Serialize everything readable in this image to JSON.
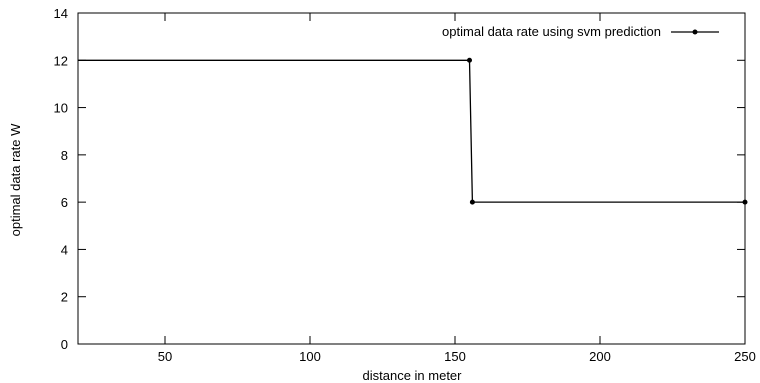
{
  "chart_data": {
    "type": "line",
    "title": "",
    "xlabel": "distance in meter",
    "ylabel": "optimal data rate W",
    "xlim": [
      20,
      250
    ],
    "ylim": [
      0,
      14
    ],
    "xticks": [
      50,
      100,
      150,
      200,
      250
    ],
    "yticks": [
      0,
      2,
      4,
      6,
      8,
      10,
      12,
      14
    ],
    "grid": false,
    "legend_position": "top-right",
    "series": [
      {
        "name": "optimal data rate using svm prediction",
        "color": "#000000",
        "marker": "dot",
        "x": [
          20,
          155,
          156,
          250
        ],
        "y": [
          12,
          12,
          6,
          6
        ],
        "marked_points": [
          false,
          true,
          true,
          true
        ]
      }
    ]
  }
}
